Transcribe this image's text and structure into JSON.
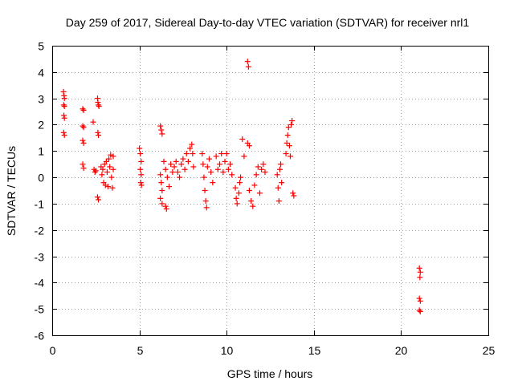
{
  "chart_data": {
    "type": "scatter",
    "title": "Day 259 of 2017, Sidereal Day-to-day VTEC variation (SDTVAR) for receiver nrl1",
    "xlabel": "GPS time / hours",
    "ylabel": "SDTVAR / TECUs",
    "xlim": [
      0,
      25
    ],
    "ylim": [
      -6,
      5
    ],
    "xticks": [
      0,
      5,
      10,
      15,
      20,
      25
    ],
    "yticks": [
      -6,
      -5,
      -4,
      -3,
      -2,
      -1,
      0,
      1,
      2,
      3,
      4,
      5
    ],
    "grid": true,
    "marker": "+",
    "color": "#ff0000",
    "series": [
      {
        "name": "SDTVAR",
        "points": [
          [
            0.65,
            3.25
          ],
          [
            0.68,
            3.1
          ],
          [
            0.7,
            3.0
          ],
          [
            0.66,
            2.75
          ],
          [
            0.7,
            2.7
          ],
          [
            0.67,
            2.35
          ],
          [
            0.7,
            2.25
          ],
          [
            0.66,
            1.7
          ],
          [
            0.7,
            1.6
          ],
          [
            1.75,
            2.6
          ],
          [
            1.8,
            2.55
          ],
          [
            1.75,
            1.95
          ],
          [
            1.8,
            1.9
          ],
          [
            1.75,
            1.4
          ],
          [
            1.8,
            1.3
          ],
          [
            1.75,
            0.5
          ],
          [
            1.8,
            0.35
          ],
          [
            2.35,
            2.1
          ],
          [
            2.4,
            0.3
          ],
          [
            2.45,
            0.2
          ],
          [
            2.5,
            0.25
          ],
          [
            2.6,
            3.0
          ],
          [
            2.62,
            2.85
          ],
          [
            2.65,
            2.75
          ],
          [
            2.68,
            2.7
          ],
          [
            2.62,
            1.7
          ],
          [
            2.65,
            1.6
          ],
          [
            2.6,
            -0.75
          ],
          [
            2.65,
            -0.85
          ],
          [
            2.8,
            0.4
          ],
          [
            2.85,
            0.1
          ],
          [
            2.9,
            0.3
          ],
          [
            2.95,
            -0.2
          ],
          [
            3.0,
            0.5
          ],
          [
            3.05,
            -0.3
          ],
          [
            3.1,
            0.6
          ],
          [
            3.15,
            0.2
          ],
          [
            3.2,
            -0.35
          ],
          [
            3.25,
            0.7
          ],
          [
            3.3,
            0.4
          ],
          [
            3.35,
            0.85
          ],
          [
            3.4,
            0.0
          ],
          [
            3.45,
            -0.4
          ],
          [
            3.5,
            0.8
          ],
          [
            3.5,
            0.3
          ],
          [
            5.0,
            1.1
          ],
          [
            5.05,
            0.9
          ],
          [
            5.1,
            0.6
          ],
          [
            5.05,
            0.3
          ],
          [
            5.1,
            0.1
          ],
          [
            5.08,
            -0.2
          ],
          [
            5.12,
            -0.3
          ],
          [
            6.2,
            1.95
          ],
          [
            6.25,
            1.8
          ],
          [
            6.3,
            1.65
          ],
          [
            6.2,
            0.1
          ],
          [
            6.25,
            -0.2
          ],
          [
            6.3,
            -0.5
          ],
          [
            6.2,
            -0.8
          ],
          [
            6.3,
            -1.0
          ],
          [
            6.5,
            -1.1
          ],
          [
            6.55,
            -1.2
          ],
          [
            6.4,
            0.6
          ],
          [
            6.5,
            0.3
          ],
          [
            6.6,
            0.0
          ],
          [
            6.7,
            -0.35
          ],
          [
            6.8,
            0.5
          ],
          [
            6.9,
            0.2
          ],
          [
            7.0,
            0.4
          ],
          [
            7.1,
            0.6
          ],
          [
            7.2,
            0.2
          ],
          [
            7.3,
            0.0
          ],
          [
            7.4,
            0.5
          ],
          [
            7.5,
            0.7
          ],
          [
            7.6,
            0.3
          ],
          [
            7.7,
            0.9
          ],
          [
            7.8,
            0.6
          ],
          [
            7.9,
            1.1
          ],
          [
            8.0,
            1.25
          ],
          [
            8.05,
            0.9
          ],
          [
            8.1,
            0.4
          ],
          [
            8.6,
            0.9
          ],
          [
            8.65,
            0.5
          ],
          [
            8.7,
            0.0
          ],
          [
            8.75,
            -0.5
          ],
          [
            8.8,
            -0.9
          ],
          [
            8.85,
            -1.15
          ],
          [
            8.9,
            0.4
          ],
          [
            9.0,
            0.7
          ],
          [
            9.1,
            0.2
          ],
          [
            9.2,
            -0.2
          ],
          [
            9.4,
            0.8
          ],
          [
            9.5,
            0.3
          ],
          [
            9.6,
            0.5
          ],
          [
            9.7,
            0.9
          ],
          [
            9.8,
            0.2
          ],
          [
            9.9,
            0.6
          ],
          [
            10.0,
            0.9
          ],
          [
            10.1,
            0.3
          ],
          [
            10.2,
            0.5
          ],
          [
            10.3,
            0.1
          ],
          [
            10.5,
            -0.4
          ],
          [
            10.55,
            -0.8
          ],
          [
            10.6,
            -1.0
          ],
          [
            10.7,
            -0.6
          ],
          [
            10.75,
            -0.2
          ],
          [
            10.8,
            0.0
          ],
          [
            10.9,
            1.45
          ],
          [
            11.0,
            0.8
          ],
          [
            11.2,
            4.4
          ],
          [
            11.25,
            4.2
          ],
          [
            11.2,
            1.3
          ],
          [
            11.3,
            1.2
          ],
          [
            11.3,
            -0.5
          ],
          [
            11.4,
            -0.9
          ],
          [
            11.5,
            -1.1
          ],
          [
            11.6,
            -0.3
          ],
          [
            11.7,
            0.1
          ],
          [
            11.8,
            0.4
          ],
          [
            11.9,
            -0.6
          ],
          [
            12.0,
            0.3
          ],
          [
            12.1,
            0.5
          ],
          [
            12.2,
            0.2
          ],
          [
            12.9,
            0.1
          ],
          [
            12.95,
            -0.4
          ],
          [
            13.0,
            -0.9
          ],
          [
            13.05,
            0.3
          ],
          [
            13.1,
            0.5
          ],
          [
            13.15,
            -0.2
          ],
          [
            13.4,
            0.9
          ],
          [
            13.45,
            1.3
          ],
          [
            13.5,
            1.6
          ],
          [
            13.55,
            1.9
          ],
          [
            13.6,
            1.2
          ],
          [
            13.65,
            0.8
          ],
          [
            13.7,
            2.0
          ],
          [
            13.75,
            2.15
          ],
          [
            13.8,
            -0.6
          ],
          [
            13.85,
            -0.7
          ],
          [
            21.05,
            -3.45
          ],
          [
            21.1,
            -3.6
          ],
          [
            21.08,
            -3.8
          ],
          [
            21.05,
            -4.6
          ],
          [
            21.1,
            -4.7
          ],
          [
            21.05,
            -5.05
          ],
          [
            21.1,
            -5.1
          ]
        ]
      }
    ]
  }
}
